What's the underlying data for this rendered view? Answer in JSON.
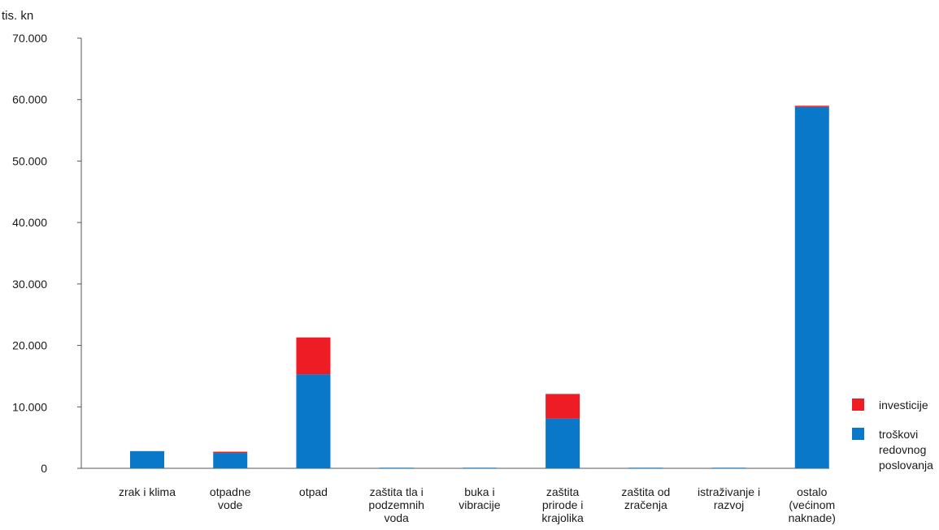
{
  "chart_data": {
    "type": "bar",
    "stacked": true,
    "unit_label": "tis. kn",
    "ylim": [
      0,
      70000
    ],
    "y_ticks": [
      0,
      10000,
      20000,
      30000,
      40000,
      50000,
      60000,
      70000
    ],
    "y_tick_labels": [
      "0",
      "10.000",
      "20.000",
      "30.000",
      "40.000",
      "50.000",
      "60.000",
      "70.000"
    ],
    "grid": false,
    "legend_position": "right",
    "categories": [
      [
        "zrak i klima"
      ],
      [
        "otpadne",
        "vode"
      ],
      [
        "otpad"
      ],
      [
        "zaštita tla i",
        "podzemnih",
        "voda"
      ],
      [
        "buka i",
        "vibracije"
      ],
      [
        "zaštita",
        "prirode i",
        "krajolika"
      ],
      [
        "zaštita od",
        "zračenja"
      ],
      [
        "istraživanje i",
        "razvoj"
      ],
      [
        "ostalo",
        "(većinom",
        "naknade)"
      ]
    ],
    "series": [
      {
        "name": [
          "troškovi",
          "redovnog",
          "poslovanja"
        ],
        "color": "#0a78c8",
        "values": [
          2800,
          2500,
          15300,
          100,
          100,
          8100,
          100,
          100,
          58800
        ]
      },
      {
        "name": [
          "investicije"
        ],
        "color": "#ee1c25",
        "values": [
          0,
          200,
          6000,
          0,
          0,
          4000,
          0,
          0,
          200
        ]
      }
    ],
    "legend_order": [
      1,
      0
    ]
  }
}
